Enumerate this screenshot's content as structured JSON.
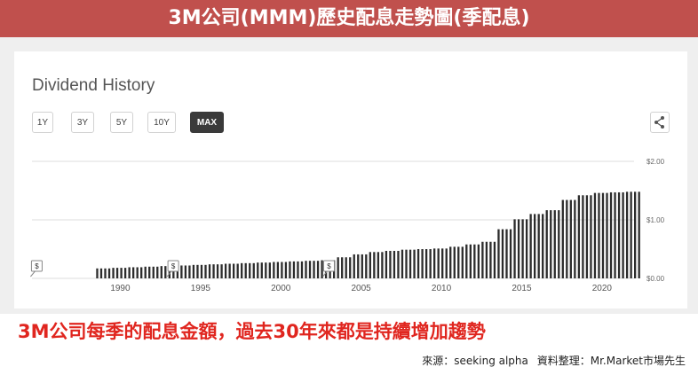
{
  "banner_title": "3M公司(MMM)歷史配息走勢圖(季配息)",
  "card_title": "Dividend History",
  "ranges": [
    "1Y",
    "3Y",
    "5Y",
    "10Y",
    "MAX"
  ],
  "active_range": "MAX",
  "share_icon": "share-icon",
  "subtitle": "3M公司每季的配息金額，過去30年來都是持續增加趨勢",
  "source": {
    "source_label": "來源：",
    "source_value": "seeking  alpha",
    "compiled_label": "資料整理：",
    "compiled_value": "Mr.Market市場先生"
  },
  "chart_data": {
    "type": "bar",
    "title": "Dividend History",
    "xlabel": "",
    "ylabel": "",
    "xlim": [
      1985,
      2022.5
    ],
    "ylim": [
      0,
      2
    ],
    "y_ticks": [
      "$0.00",
      "$1.00",
      "$2.00"
    ],
    "x_ticks": [
      1990,
      1995,
      2000,
      2005,
      2010,
      2015,
      2020
    ],
    "grid": true,
    "bar_color": "#2b2b2b",
    "special_dividend_markers": [
      {
        "x": 1985.3,
        "label": "$"
      },
      {
        "x": 1993.8,
        "label": "$"
      },
      {
        "x": 2003.5,
        "label": "$"
      }
    ],
    "series": [
      {
        "values": [
          {
            "year": 1989,
            "value": 0.17
          },
          {
            "year": 1990,
            "value": 0.18
          },
          {
            "year": 1991,
            "value": 0.19
          },
          {
            "year": 1992,
            "value": 0.2
          },
          {
            "year": 1993,
            "value": 0.21
          },
          {
            "year": 1994,
            "value": 0.22
          },
          {
            "year": 1995,
            "value": 0.23
          },
          {
            "year": 1996,
            "value": 0.24
          },
          {
            "year": 1997,
            "value": 0.25
          },
          {
            "year": 1998,
            "value": 0.26
          },
          {
            "year": 1999,
            "value": 0.27
          },
          {
            "year": 2000,
            "value": 0.28
          },
          {
            "year": 2001,
            "value": 0.29
          },
          {
            "year": 2002,
            "value": 0.3
          },
          {
            "year": 2003,
            "value": 0.31
          },
          {
            "year": 2004,
            "value": 0.36
          },
          {
            "year": 2005,
            "value": 0.41
          },
          {
            "year": 2006,
            "value": 0.45
          },
          {
            "year": 2007,
            "value": 0.47
          },
          {
            "year": 2008,
            "value": 0.49
          },
          {
            "year": 2009,
            "value": 0.5
          },
          {
            "year": 2010,
            "value": 0.51
          },
          {
            "year": 2011,
            "value": 0.54
          },
          {
            "year": 2012,
            "value": 0.58
          },
          {
            "year": 2013,
            "value": 0.625
          },
          {
            "year": 2014,
            "value": 0.84
          },
          {
            "year": 2015,
            "value": 1.01
          },
          {
            "year": 2016,
            "value": 1.1
          },
          {
            "year": 2017,
            "value": 1.165
          },
          {
            "year": 2018,
            "value": 1.34
          },
          {
            "year": 2019,
            "value": 1.42
          },
          {
            "year": 2020,
            "value": 1.46
          },
          {
            "year": 2021,
            "value": 1.47
          },
          {
            "year": 2022,
            "value": 1.48
          }
        ]
      }
    ]
  }
}
